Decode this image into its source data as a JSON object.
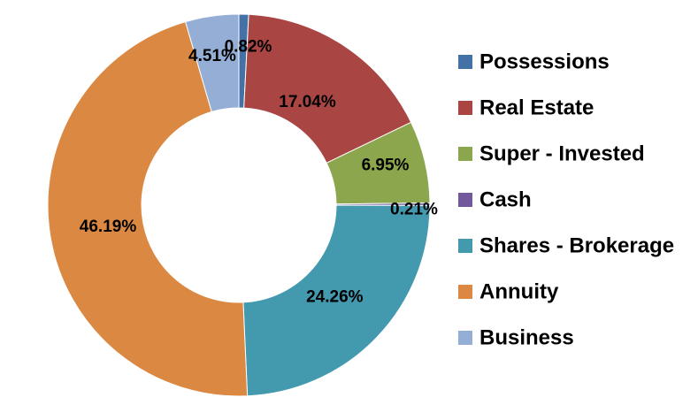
{
  "chart_data": {
    "type": "pie",
    "donut": true,
    "categories": [
      "Possessions",
      "Real Estate",
      "Super - Invested",
      "Cash",
      "Shares - Brokerage",
      "Annuity",
      "Business"
    ],
    "values": [
      0.82,
      17.04,
      6.95,
      0.21,
      24.26,
      46.19,
      4.51
    ],
    "data_labels": [
      "0.82%",
      "17.04%",
      "6.95%",
      "0.21%",
      "24.26%",
      "46.19%",
      "4.51%"
    ],
    "colors": [
      "#4472A7",
      "#A94644",
      "#8BA64C",
      "#71599B",
      "#4399AE",
      "#DB8842",
      "#94AED6"
    ],
    "title": "",
    "legend_position": "right"
  }
}
